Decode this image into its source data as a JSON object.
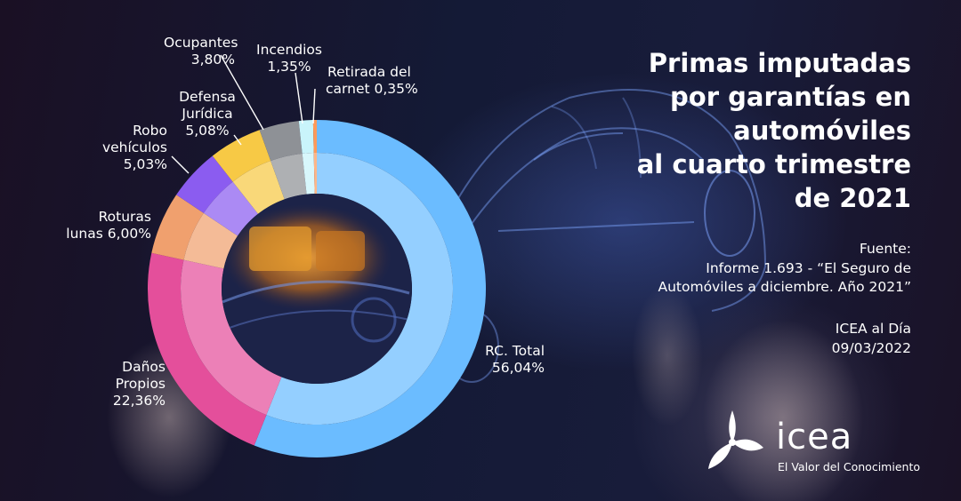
{
  "title_lines": [
    "Primas imputadas",
    "por garantías en",
    "automóviles",
    "al cuarto trimestre",
    "de 2021"
  ],
  "source": {
    "lines": [
      "Fuente:",
      "Informe 1.693 - “El Seguro de",
      "Automóviles a diciembre. Año 2021”"
    ]
  },
  "publication": {
    "lines": [
      "ICEA al Día",
      "09/03/2022"
    ]
  },
  "logo": {
    "name": "icea",
    "tagline": "El Valor del Conocimiento",
    "icon": "icea-triskelion-icon"
  },
  "chart_data": {
    "type": "pie",
    "variant": "donut",
    "start_angle_deg": 0,
    "direction": "clockwise",
    "title": "Primas imputadas por garantías en automóviles al cuarto trimestre de 2021",
    "unit": "%",
    "slices": [
      {
        "label_lines": [
          "RC. Total",
          "56,04%"
        ],
        "value": 56.04,
        "color": "#6bbcff"
      },
      {
        "label_lines": [
          "Daños",
          "Propios",
          "22,36%"
        ],
        "value": 22.36,
        "color": "#e44f9b"
      },
      {
        "label_lines": [
          "Roturas",
          "lunas  6,00%"
        ],
        "value": 6.0,
        "color": "#f0a06e"
      },
      {
        "label_lines": [
          "Robo",
          "vehículos",
          "5,03%"
        ],
        "value": 5.03,
        "color": "#8b5cf0"
      },
      {
        "label_lines": [
          "Defensa",
          "Jurídica",
          "5,08%"
        ],
        "value": 5.08,
        "color": "#f7c945"
      },
      {
        "label_lines": [
          "Ocupantes",
          "3,80%"
        ],
        "value": 3.8,
        "color": "#8e9196"
      },
      {
        "label_lines": [
          "Incendios",
          "1,35%"
        ],
        "value": 1.35,
        "color": "#c9f4fb"
      },
      {
        "label_lines": [
          "Retirada del",
          "carnet  0,35%"
        ],
        "value": 0.35,
        "color": "#ff9a5a"
      }
    ]
  }
}
